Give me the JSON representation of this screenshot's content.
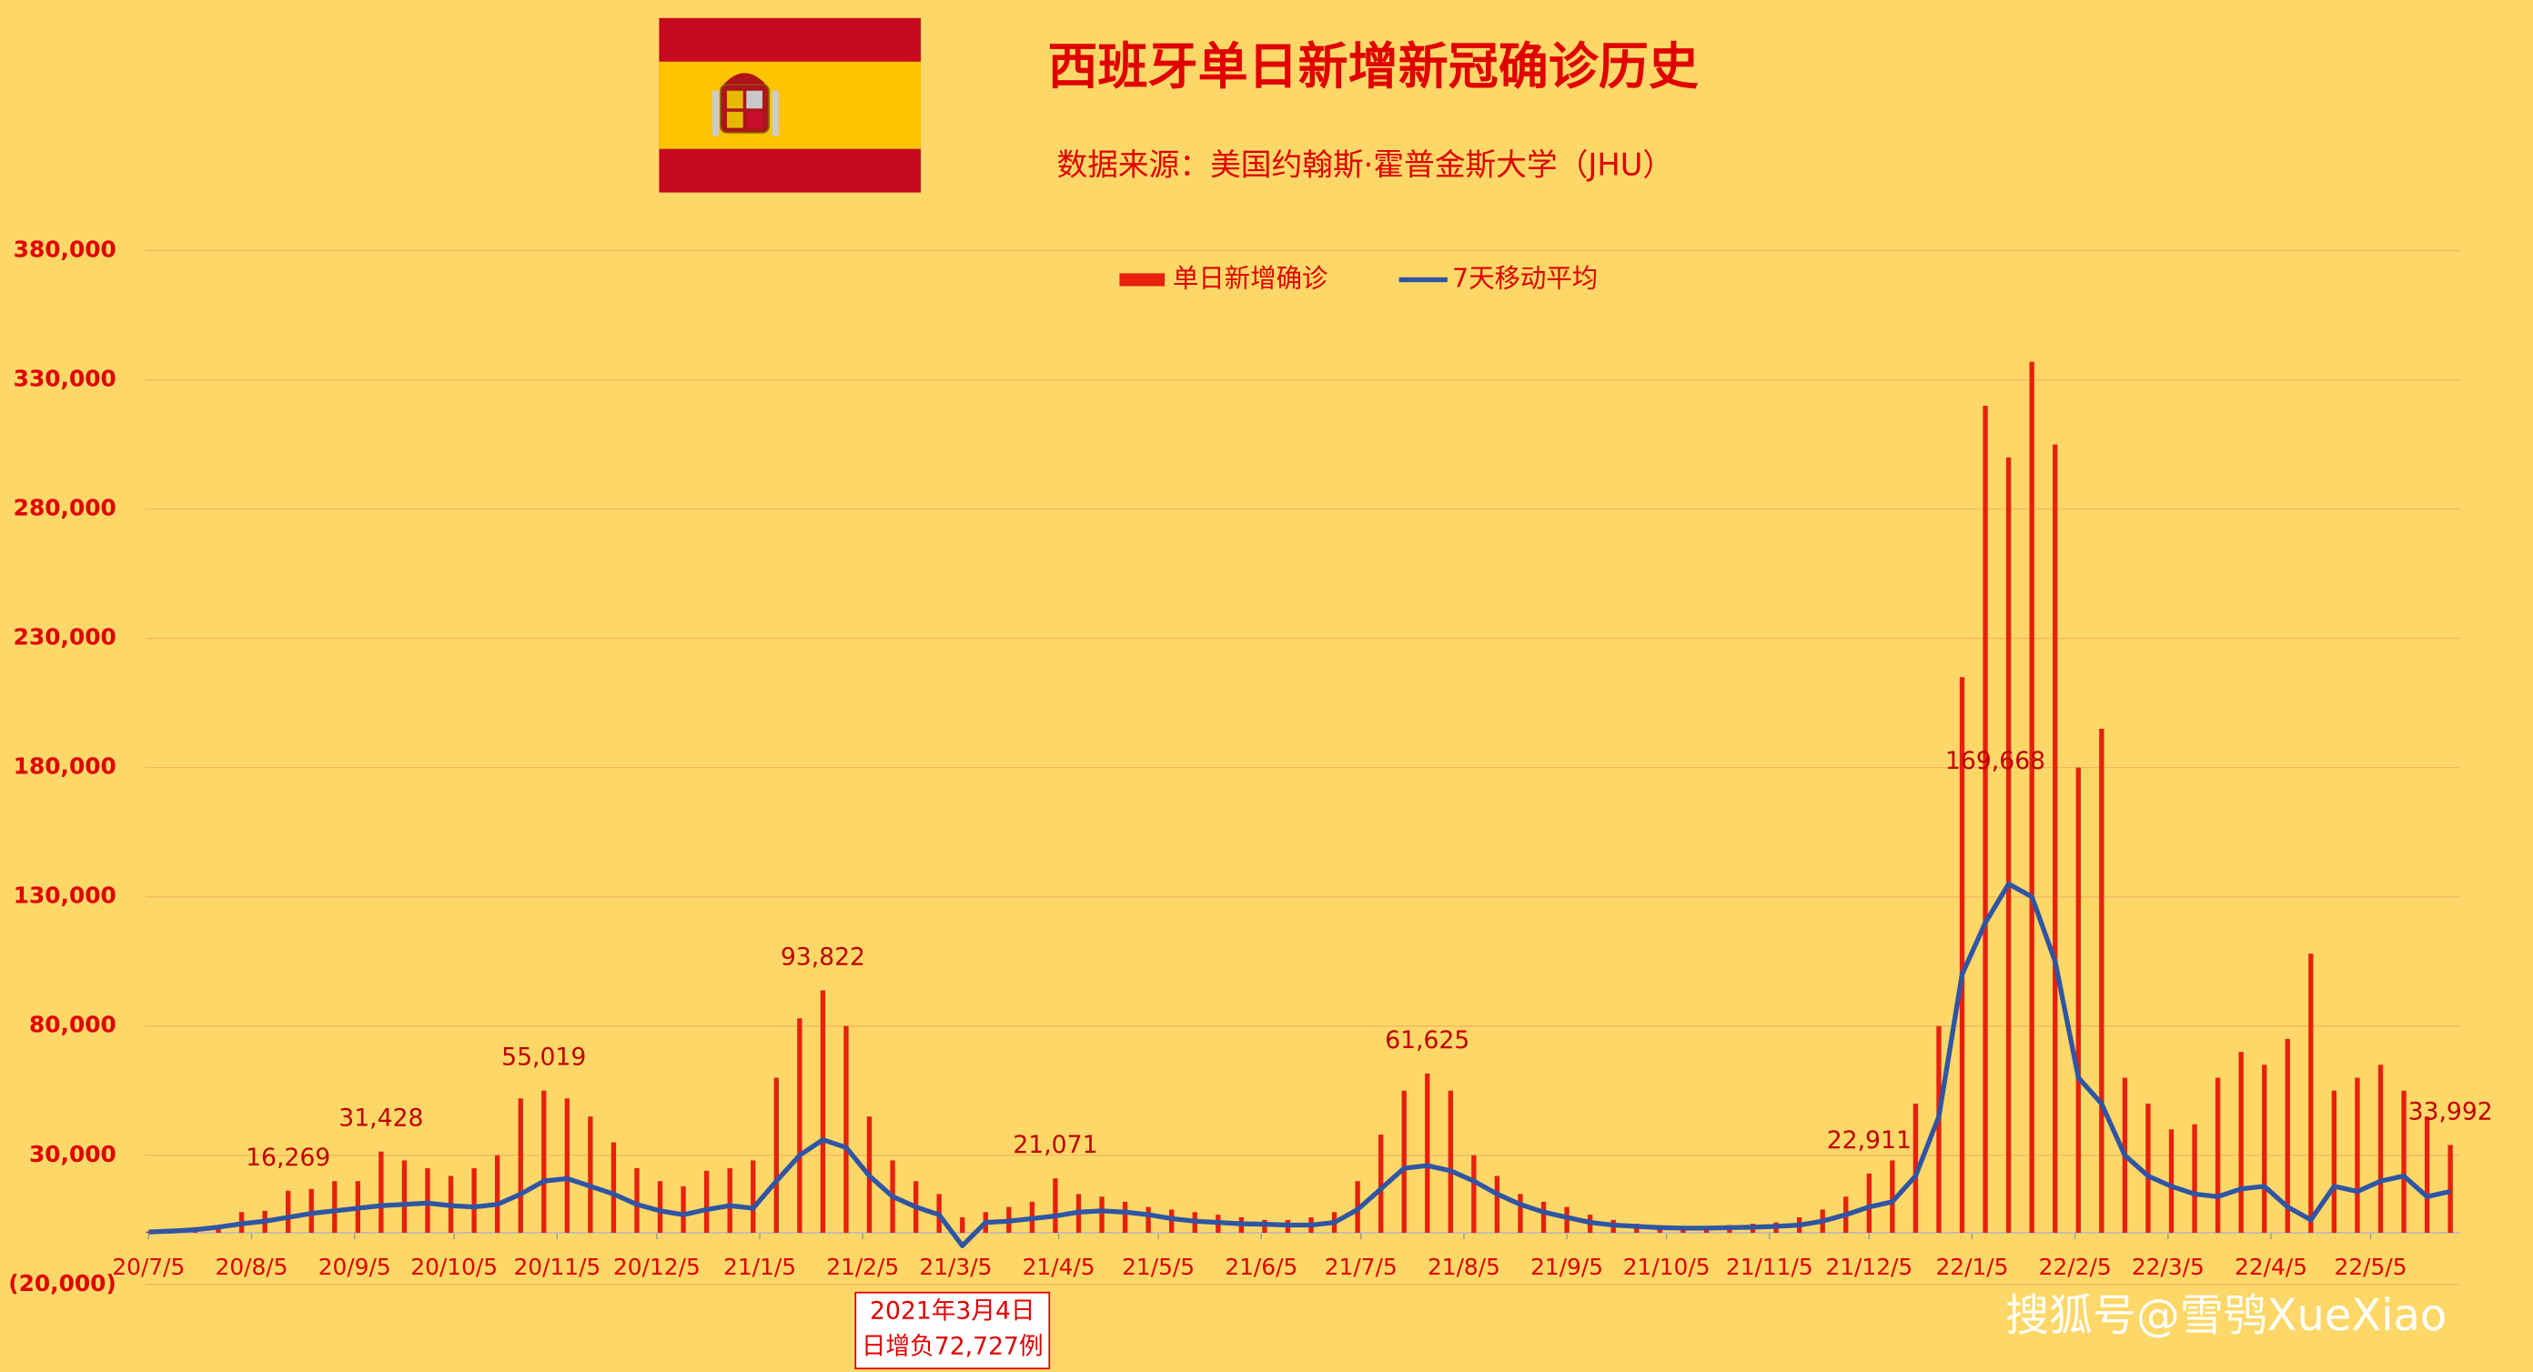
{
  "chart_data": {
    "type": "bar-line",
    "title": "西班牙单日新增新冠确诊历史",
    "subtitle": "数据来源：美国约翰斯·霍普金斯大学（JHU）",
    "watermark": "搜狐号@雪鸮XueXiao",
    "grid": true,
    "legend": "top",
    "x": [
      "20/7/5",
      "20/7/12",
      "20/7/19",
      "20/7/26",
      "20/8/2",
      "20/8/9",
      "20/8/16",
      "20/8/23",
      "20/8/30",
      "20/9/6",
      "20/9/13",
      "20/9/20",
      "20/9/27",
      "20/10/4",
      "20/10/11",
      "20/10/18",
      "20/10/25",
      "20/11/1",
      "20/11/8",
      "20/11/15",
      "20/11/22",
      "20/11/29",
      "20/12/6",
      "20/12/13",
      "20/12/20",
      "20/12/27",
      "21/1/3",
      "21/1/10",
      "21/1/17",
      "21/1/24",
      "21/1/31",
      "21/2/7",
      "21/2/14",
      "21/2/21",
      "21/2/28",
      "21/3/7",
      "21/3/14",
      "21/3/21",
      "21/3/28",
      "21/4/4",
      "21/4/11",
      "21/4/18",
      "21/4/25",
      "21/5/2",
      "21/5/9",
      "21/5/16",
      "21/5/23",
      "21/5/30",
      "21/6/6",
      "21/6/13",
      "21/6/20",
      "21/6/27",
      "21/7/4",
      "21/7/11",
      "21/7/18",
      "21/7/25",
      "21/8/1",
      "21/8/8",
      "21/8/15",
      "21/8/22",
      "21/8/29",
      "21/9/5",
      "21/9/12",
      "21/9/19",
      "21/9/26",
      "21/10/3",
      "21/10/10",
      "21/10/17",
      "21/10/24",
      "21/10/31",
      "21/11/7",
      "21/11/14",
      "21/11/21",
      "21/11/28",
      "21/12/5",
      "21/12/12",
      "21/12/19",
      "21/12/26",
      "22/1/2",
      "22/1/9",
      "22/1/16",
      "22/1/23",
      "22/1/30",
      "22/2/6",
      "22/2/13",
      "22/2/20",
      "22/2/27",
      "22/3/6",
      "22/3/13",
      "22/3/20",
      "22/3/27",
      "22/4/3",
      "22/4/10",
      "22/4/17",
      "22/4/24",
      "22/5/1",
      "22/5/8",
      "22/5/15",
      "22/5/22",
      "22/5/29"
    ],
    "series": [
      {
        "name": "单日新增确诊",
        "color": "#e8200c",
        "values": [
          500,
          1500,
          2200,
          3000,
          8000,
          8500,
          16269,
          17000,
          20000,
          20000,
          31428,
          28000,
          25000,
          22000,
          25000,
          30000,
          52000,
          55019,
          52000,
          45000,
          35000,
          25000,
          20000,
          18000,
          24000,
          25000,
          28000,
          60000,
          83000,
          93822,
          80000,
          45000,
          28000,
          20000,
          15000,
          6000,
          8000,
          10000,
          12000,
          21071,
          15000,
          14000,
          12000,
          10000,
          9000,
          8000,
          7000,
          6000,
          5000,
          5000,
          6000,
          8000,
          20000,
          38000,
          55000,
          61625,
          55000,
          30000,
          22000,
          15000,
          12000,
          10000,
          7000,
          5000,
          3500,
          3000,
          2500,
          2500,
          3000,
          3500,
          4000,
          6000,
          9000,
          14000,
          22911,
          28000,
          50000,
          80000,
          215000,
          320000,
          300000,
          337000,
          305000,
          180000,
          195000,
          60000,
          50000,
          40000,
          42000,
          60000,
          70000,
          65000,
          75000,
          108000,
          55000,
          60000,
          65000,
          55000,
          45000,
          33992
        ]
      },
      {
        "name": "7天移动平均",
        "color": "#2f55a4",
        "values": [
          300,
          700,
          1200,
          2200,
          3500,
          4500,
          6000,
          7500,
          8500,
          9500,
          10500,
          11000,
          11500,
          10500,
          10000,
          11000,
          15000,
          20000,
          21000,
          18000,
          15000,
          11000,
          8500,
          7000,
          9000,
          10500,
          9500,
          20000,
          30000,
          36000,
          33000,
          22000,
          14000,
          10000,
          7000,
          -5000,
          4000,
          4500,
          5500,
          6500,
          8000,
          8500,
          8000,
          7000,
          5500,
          4500,
          4000,
          3500,
          3300,
          3000,
          3000,
          4000,
          9000,
          17000,
          25000,
          26000,
          24000,
          20000,
          15000,
          11000,
          8000,
          6000,
          4000,
          3000,
          2500,
          2000,
          1800,
          1800,
          2000,
          2200,
          2500,
          3000,
          4500,
          7000,
          10000,
          12000,
          22000,
          45000,
          100000,
          120000,
          135000,
          130000,
          105000,
          60000,
          50000,
          30000,
          22000,
          18000,
          15000,
          14000,
          17000,
          18000,
          10000,
          5000,
          18000,
          16000,
          20000,
          22000,
          14000,
          16000
        ]
      }
    ],
    "xlim": [
      "20/7/5",
      "22/6/1"
    ],
    "xticks": [
      "20/7/5",
      "20/8/5",
      "20/9/5",
      "20/10/5",
      "20/11/5",
      "20/12/5",
      "21/1/5",
      "21/2/5",
      "21/3/5",
      "21/4/5",
      "21/5/5",
      "21/6/5",
      "21/7/5",
      "21/8/5",
      "21/9/5",
      "21/10/5",
      "21/11/5",
      "21/12/5",
      "22/1/5",
      "22/2/5",
      "22/3/5",
      "22/4/5",
      "22/5/5"
    ],
    "ylim": [
      -20000,
      380000
    ],
    "yticks": [
      {
        "value": -20000,
        "label": "(20,000)"
      },
      {
        "value": 30000,
        "label": "30,000"
      },
      {
        "value": 80000,
        "label": "80,000"
      },
      {
        "value": 130000,
        "label": "130,000"
      },
      {
        "value": 180000,
        "label": "180,000"
      },
      {
        "value": 230000,
        "label": "230,000"
      },
      {
        "value": 280000,
        "label": "280,000"
      },
      {
        "value": 330000,
        "label": "330,000"
      },
      {
        "value": 380000,
        "label": "380,000"
      }
    ],
    "annotations": [
      {
        "x": "20/8/16",
        "value": 16269,
        "label": "16,269"
      },
      {
        "x": "20/9/13",
        "value": 31428,
        "label": "31,428"
      },
      {
        "x": "20/11/1",
        "value": 55019,
        "label": "55,019"
      },
      {
        "x": "21/1/24",
        "value": 93822,
        "label": "93,822"
      },
      {
        "x": "21/4/4",
        "value": 21071,
        "label": "21,071"
      },
      {
        "x": "21/7/25",
        "value": 61625,
        "label": "61,625"
      },
      {
        "x": "21/12/5",
        "value": 22911,
        "label": "22,911"
      },
      {
        "x": "22/1/12",
        "value": 169668,
        "label": "169,668"
      },
      {
        "x": "22/5/29",
        "value": 33992,
        "label": "33,992"
      }
    ],
    "note": {
      "x": "21/3/4",
      "lines": [
        "2021年3月4日",
        "日增负72,727例"
      ]
    }
  }
}
